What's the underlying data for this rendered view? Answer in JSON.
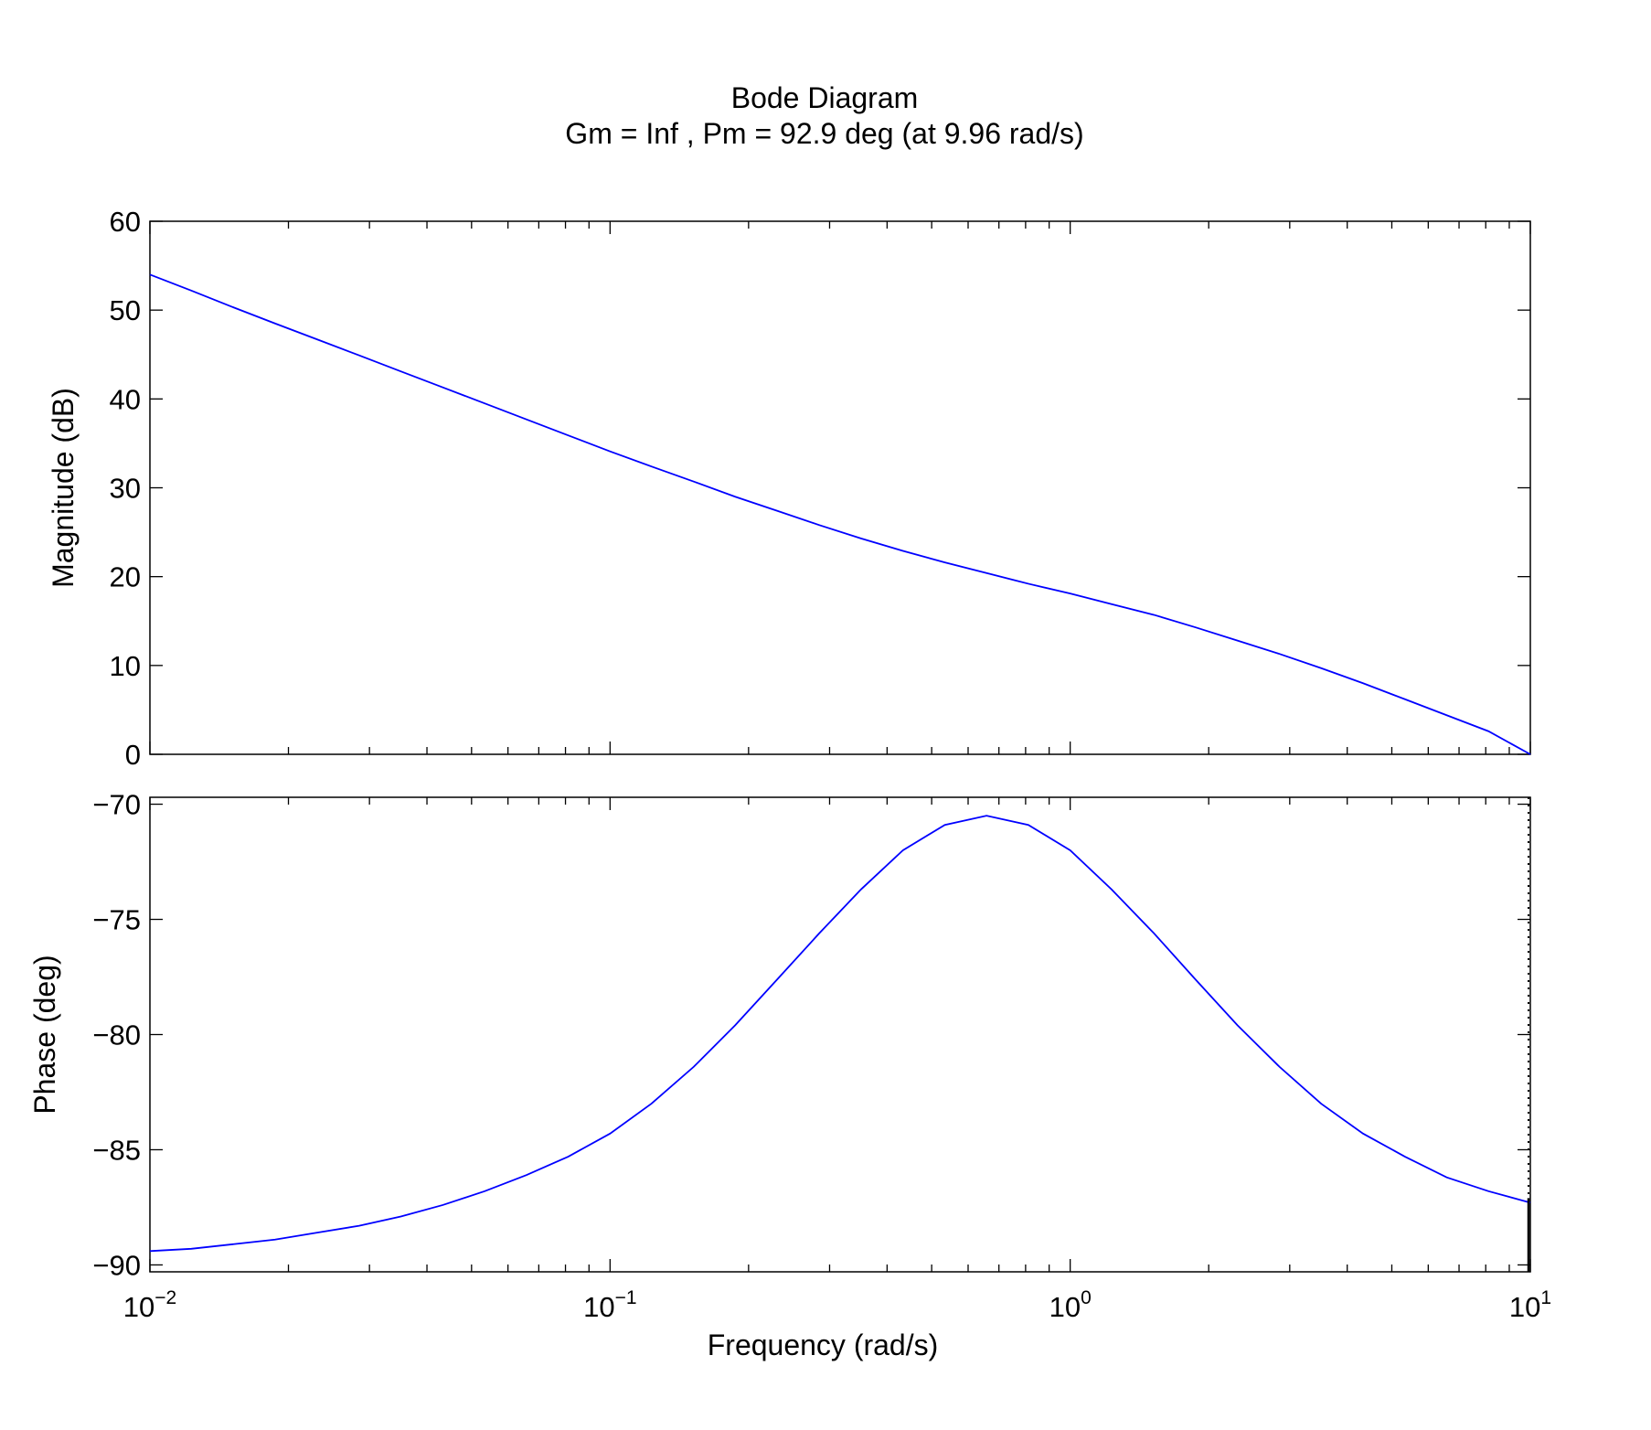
{
  "chart_data": {
    "type": "line",
    "title": "Bode Diagram",
    "subtitle": "Gm = Inf ,  Pm = 92.9 deg (at 9.96 rad/s)",
    "xlabel": "Frequency  (rad/s)",
    "x_scale": "log",
    "xlim": [
      0.01,
      10
    ],
    "x_ticks": [
      {
        "value": 0.01,
        "base": "10",
        "exp": "−2"
      },
      {
        "value": 0.1,
        "base": "10",
        "exp": "−1"
      },
      {
        "value": 1,
        "base": "10",
        "exp": "0"
      },
      {
        "value": 10,
        "base": "10",
        "exp": "1"
      }
    ],
    "grid": false,
    "line_color": "#0000ff",
    "axes_color": "#000000",
    "frequency": [
      0.01,
      0.0123,
      0.0152,
      0.0187,
      0.0231,
      0.0285,
      0.0351,
      0.0433,
      0.0534,
      0.0658,
      0.0811,
      0.1,
      0.123,
      0.152,
      0.187,
      0.231,
      0.285,
      0.351,
      0.433,
      0.534,
      0.658,
      0.811,
      1.0,
      1.23,
      1.52,
      1.87,
      2.31,
      2.85,
      3.51,
      4.33,
      5.34,
      6.58,
      8.11,
      10.0
    ],
    "panels": [
      {
        "ylabel": "Magnitude (dB)",
        "ylim": [
          0,
          60
        ],
        "y_ticks": [
          0,
          10,
          20,
          30,
          40,
          50,
          60
        ],
        "y_tick_labels": [
          "0",
          "10",
          "20",
          "30",
          "40",
          "50",
          "60"
        ],
        "series": [
          {
            "values": [
              54.0,
              52.2,
              50.3,
              48.5,
              46.7,
              44.9,
              43.1,
              41.3,
              39.5,
              37.7,
              35.9,
              34.1,
              32.4,
              30.7,
              29.0,
              27.4,
              25.8,
              24.3,
              22.9,
              21.6,
              20.4,
              19.2,
              18.1,
              16.9,
              15.7,
              14.3,
              12.8,
              11.3,
              9.7,
              8.0,
              6.2,
              4.4,
              2.6,
              0.0
            ]
          }
        ]
      },
      {
        "ylabel": "Phase (deg)",
        "ylim": [
          -90.3,
          -69.7
        ],
        "y_ticks": [
          -90,
          -85,
          -80,
          -75,
          -70
        ],
        "y_tick_labels": [
          "−90",
          "−85",
          "−80",
          "−75",
          "−70"
        ],
        "series": [
          {
            "values": [
              -89.4,
              -89.3,
              -89.1,
              -88.9,
              -88.6,
              -88.3,
              -87.9,
              -87.4,
              -86.8,
              -86.1,
              -85.3,
              -84.3,
              -83.0,
              -81.4,
              -79.6,
              -77.6,
              -75.6,
              -73.7,
              -72.0,
              -70.9,
              -70.5,
              -70.9,
              -72.0,
              -73.7,
              -75.6,
              -77.6,
              -79.6,
              -81.4,
              -83.0,
              -84.3,
              -85.3,
              -86.2,
              -86.8,
              -87.3
            ]
          }
        ],
        "phase_margin_marker": {
          "frequency": 10.0,
          "from": -87.1,
          "to": -90.3
        }
      }
    ]
  }
}
